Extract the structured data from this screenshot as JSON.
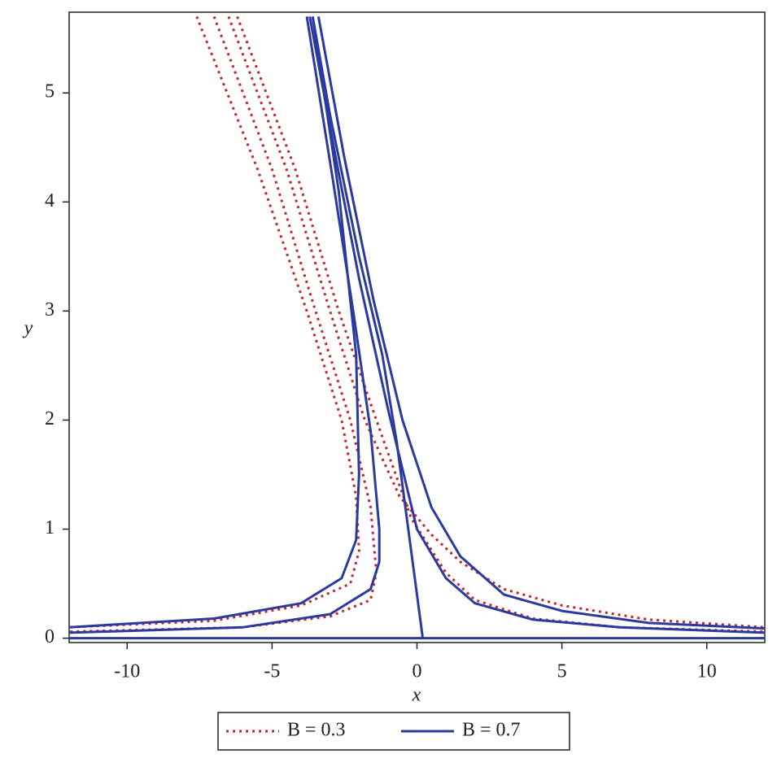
{
  "chart_data": {
    "type": "line",
    "xlabel": "x",
    "ylabel": "y",
    "xlim": [
      -12,
      12
    ],
    "ylim": [
      -0.04,
      5.74
    ],
    "xticks": [
      -10,
      -5,
      0,
      5,
      10
    ],
    "yticks": [
      0,
      1,
      2,
      3,
      4,
      5
    ],
    "series": [
      {
        "name": "B = 0.3",
        "color": "#c0282d",
        "style": "dotted",
        "lines": [
          {
            "x": [
              -7.6,
              -5.5,
              -3.8,
              -2.6,
              -2.1,
              -2.0,
              -2.3,
              -4,
              -7,
              -12
            ],
            "values": [
              5.7,
              4.3,
              3.0,
              2.0,
              1.3,
              0.8,
              0.5,
              0.3,
              0.16,
              0.1
            ]
          },
          {
            "x": [
              -7,
              -5,
              -3.5,
              -2.3,
              -1.6,
              -1.4,
              -1.6,
              -3,
              -6,
              -12
            ],
            "values": [
              5.7,
              4.3,
              3.0,
              2.0,
              1.2,
              0.6,
              0.35,
              0.2,
              0.1,
              0.06
            ]
          },
          {
            "x": [
              -6.5,
              -4.5,
              -3,
              -1.8,
              -0.6,
              0.5,
              1.5,
              3,
              5,
              8,
              12
            ],
            "values": [
              5.7,
              4.3,
              3.0,
              2.0,
              1.3,
              0.95,
              0.7,
              0.45,
              0.3,
              0.17,
              0.1
            ]
          },
          {
            "x": [
              -6.2,
              -4.2,
              -2.7,
              -1.4,
              -0.2,
              1,
              2,
              4,
              7,
              12
            ],
            "values": [
              5.7,
              4.3,
              3.0,
              2.0,
              1.1,
              0.6,
              0.35,
              0.18,
              0.1,
              0.06
            ]
          }
        ]
      },
      {
        "name": "B = 0.7",
        "color": "#2b3a9e",
        "style": "solid",
        "lines": [
          {
            "x": [
              -12,
              12
            ],
            "values": [
              0,
              0
            ]
          },
          {
            "x": [
              0.2,
              0,
              -0.3,
              -0.7,
              -1.2,
              -2,
              -3,
              -3.6
            ],
            "values": [
              0,
              0.4,
              1,
              1.8,
              2.6,
              3.5,
              4.8,
              5.7
            ]
          },
          {
            "x": [
              -3.4,
              -2.5,
              -1.5,
              -0.5,
              0.5,
              1.5,
              3,
              5,
              8,
              12
            ],
            "values": [
              5.7,
              4.4,
              3.1,
              2.0,
              1.2,
              0.75,
              0.4,
              0.25,
              0.14,
              0.09
            ]
          },
          {
            "x": [
              -3.7,
              -2.8,
              -2,
              -1,
              0,
              1,
              2,
              4,
              7,
              12
            ],
            "values": [
              5.7,
              4.4,
              3.3,
              2.1,
              1.0,
              0.55,
              0.32,
              0.17,
              0.1,
              0.05
            ]
          },
          {
            "x": [
              -3.8,
              -2.9,
              -2.2,
              -1.6,
              -1.3,
              -1.3,
              -1.6,
              -3,
              -6,
              -12
            ],
            "values": [
              5.7,
              4.2,
              3.0,
              1.9,
              1.0,
              0.7,
              0.45,
              0.22,
              0.1,
              0.05
            ]
          },
          {
            "x": [
              -3.6,
              -2.7,
              -2.1,
              -2.0,
              -2.1,
              -2.6,
              -4,
              -7,
              -12
            ],
            "values": [
              5.7,
              4.1,
              2.6,
              1.5,
              0.9,
              0.55,
              0.32,
              0.18,
              0.1
            ]
          }
        ]
      }
    ]
  }
}
